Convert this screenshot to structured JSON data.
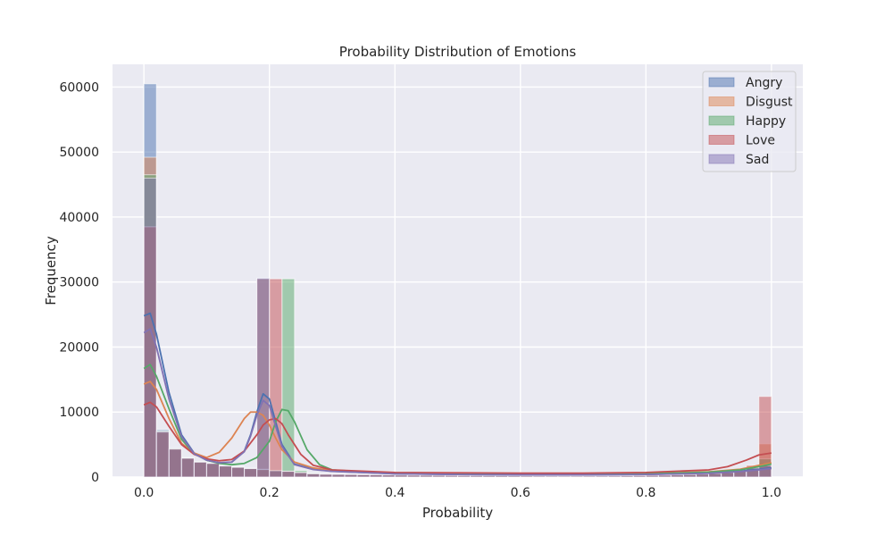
{
  "chart_data": {
    "type": "histogram",
    "title": "Probability Distribution of Emotions",
    "xlabel": "Probability",
    "ylabel": "Frequency",
    "xlim": [
      -0.05,
      1.05
    ],
    "ylim": [
      0,
      63500
    ],
    "x_ticks": [
      0.0,
      0.2,
      0.4,
      0.6,
      0.8,
      1.0
    ],
    "x_tick_labels": [
      "0.0",
      "0.2",
      "0.4",
      "0.6",
      "0.8",
      "1.0"
    ],
    "y_ticks": [
      0,
      10000,
      20000,
      30000,
      40000,
      50000,
      60000
    ],
    "y_tick_labels": [
      "0",
      "10000",
      "20000",
      "30000",
      "40000",
      "50000",
      "60000"
    ],
    "grid": true,
    "legend_position": "top-right",
    "bin_width": 0.02,
    "bins_start": 0.0,
    "series": [
      {
        "name": "Angry",
        "color": "#4c72b0",
        "bar_heights": [
          60500,
          7300,
          4500,
          3000,
          2400,
          2200,
          1800,
          1600,
          1400,
          30600,
          1000,
          900,
          700,
          500,
          450,
          420,
          400,
          380,
          360,
          340,
          320,
          300,
          280,
          260,
          250,
          240,
          230,
          220,
          210,
          200,
          190,
          180,
          170,
          160,
          160,
          160,
          170,
          180,
          200,
          220,
          250,
          280,
          320,
          380,
          450,
          550,
          700,
          900,
          1300,
          2200
        ],
        "kde_x": [
          0.0,
          0.01,
          0.02,
          0.04,
          0.06,
          0.08,
          0.1,
          0.12,
          0.14,
          0.16,
          0.17,
          0.18,
          0.19,
          0.2,
          0.21,
          0.22,
          0.24,
          0.27,
          0.3,
          0.4,
          0.5,
          0.6,
          0.7,
          0.8,
          0.9,
          0.95,
          0.98,
          1.0
        ],
        "kde_y": [
          24800,
          25200,
          22000,
          13000,
          6500,
          3700,
          2600,
          2200,
          2300,
          4000,
          6500,
          10000,
          12800,
          12000,
          8500,
          5000,
          2000,
          1200,
          900,
          500,
          400,
          350,
          350,
          400,
          600,
          900,
          1200,
          1400
        ]
      },
      {
        "name": "Disgust",
        "color": "#dd8452",
        "bar_heights": [
          49200,
          7000,
          4300,
          2900,
          2300,
          2100,
          1700,
          1500,
          1300,
          30500,
          950,
          850,
          650,
          480,
          430,
          400,
          380,
          360,
          340,
          320,
          300,
          280,
          270,
          260,
          250,
          240,
          230,
          220,
          210,
          200,
          190,
          180,
          175,
          170,
          170,
          175,
          180,
          190,
          210,
          230,
          260,
          290,
          330,
          390,
          460,
          560,
          720,
          950,
          1500,
          5100
        ],
        "kde_x": [
          0.0,
          0.01,
          0.02,
          0.04,
          0.06,
          0.08,
          0.1,
          0.12,
          0.14,
          0.16,
          0.17,
          0.18,
          0.19,
          0.2,
          0.21,
          0.22,
          0.24,
          0.27,
          0.3,
          0.4,
          0.5,
          0.6,
          0.7,
          0.8,
          0.9,
          0.95,
          0.98,
          1.0
        ],
        "kde_y": [
          14300,
          14700,
          13500,
          9000,
          5200,
          3700,
          3000,
          3800,
          6000,
          9000,
          10000,
          10000,
          9500,
          8000,
          6000,
          4200,
          2300,
          1400,
          1000,
          650,
          550,
          500,
          500,
          550,
          800,
          1200,
          1800,
          2200
        ]
      },
      {
        "name": "Happy",
        "color": "#55a868",
        "bar_heights": [
          46500,
          7100,
          4400,
          2950,
          2350,
          2150,
          1750,
          1550,
          1350,
          1200,
          1050,
          30500,
          1000,
          600,
          450,
          410,
          390,
          370,
          350,
          330,
          310,
          290,
          270,
          260,
          250,
          240,
          230,
          220,
          210,
          200,
          190,
          180,
          175,
          170,
          170,
          175,
          180,
          190,
          210,
          230,
          260,
          290,
          330,
          390,
          460,
          560,
          720,
          950,
          1400,
          2800
        ],
        "kde_x": [
          0.0,
          0.01,
          0.02,
          0.04,
          0.06,
          0.08,
          0.1,
          0.12,
          0.14,
          0.16,
          0.18,
          0.2,
          0.21,
          0.22,
          0.23,
          0.24,
          0.26,
          0.28,
          0.3,
          0.35,
          0.4,
          0.5,
          0.6,
          0.7,
          0.8,
          0.9,
          0.95,
          0.98,
          1.0
        ],
        "kde_y": [
          16700,
          17300,
          15500,
          10500,
          5800,
          3600,
          2600,
          2100,
          1900,
          2100,
          3000,
          5500,
          8500,
          10400,
          10200,
          8500,
          4200,
          1900,
          1100,
          800,
          650,
          500,
          450,
          450,
          500,
          750,
          1100,
          1600,
          2000
        ]
      },
      {
        "name": "Love",
        "color": "#c44e52",
        "bar_heights": [
          38500,
          6900,
          4350,
          2900,
          2300,
          2100,
          1700,
          1500,
          1300,
          1150,
          30500,
          900,
          700,
          520,
          450,
          420,
          400,
          380,
          360,
          340,
          320,
          300,
          280,
          270,
          260,
          250,
          240,
          230,
          220,
          210,
          200,
          195,
          190,
          190,
          195,
          200,
          210,
          230,
          250,
          280,
          310,
          350,
          400,
          460,
          540,
          650,
          800,
          1050,
          1800,
          12400
        ],
        "kde_x": [
          0.0,
          0.01,
          0.02,
          0.04,
          0.06,
          0.08,
          0.1,
          0.12,
          0.14,
          0.16,
          0.18,
          0.19,
          0.2,
          0.21,
          0.22,
          0.23,
          0.25,
          0.27,
          0.3,
          0.4,
          0.5,
          0.6,
          0.7,
          0.8,
          0.9,
          0.93,
          0.96,
          0.98,
          1.0
        ],
        "kde_y": [
          11100,
          11500,
          10800,
          7800,
          5000,
          3500,
          2800,
          2500,
          2700,
          4000,
          6500,
          8000,
          8800,
          9000,
          8200,
          6500,
          3500,
          1800,
          1100,
          700,
          650,
          600,
          600,
          700,
          1100,
          1600,
          2600,
          3400,
          3700
        ]
      },
      {
        "name": "Sad",
        "color": "#8172b3",
        "bar_heights": [
          46000,
          7000,
          4300,
          2900,
          2300,
          2100,
          1700,
          1500,
          1300,
          30600,
          980,
          880,
          680,
          500,
          440,
          410,
          390,
          370,
          350,
          330,
          310,
          290,
          275,
          260,
          250,
          240,
          230,
          220,
          210,
          200,
          190,
          180,
          175,
          170,
          170,
          175,
          180,
          190,
          210,
          230,
          260,
          290,
          330,
          390,
          460,
          560,
          720,
          950,
          1400,
          1800
        ],
        "kde_x": [
          0.0,
          0.01,
          0.02,
          0.04,
          0.06,
          0.08,
          0.1,
          0.12,
          0.14,
          0.16,
          0.17,
          0.18,
          0.19,
          0.2,
          0.21,
          0.22,
          0.24,
          0.27,
          0.3,
          0.4,
          0.5,
          0.6,
          0.7,
          0.8,
          0.9,
          0.95,
          0.98,
          1.0
        ],
        "kde_y": [
          22200,
          22800,
          20000,
          12000,
          6200,
          3600,
          2600,
          2200,
          2300,
          3900,
          6300,
          9500,
          11800,
          11000,
          7800,
          4700,
          1900,
          1150,
          880,
          500,
          400,
          350,
          350,
          400,
          580,
          850,
          1100,
          1300
        ]
      }
    ]
  }
}
